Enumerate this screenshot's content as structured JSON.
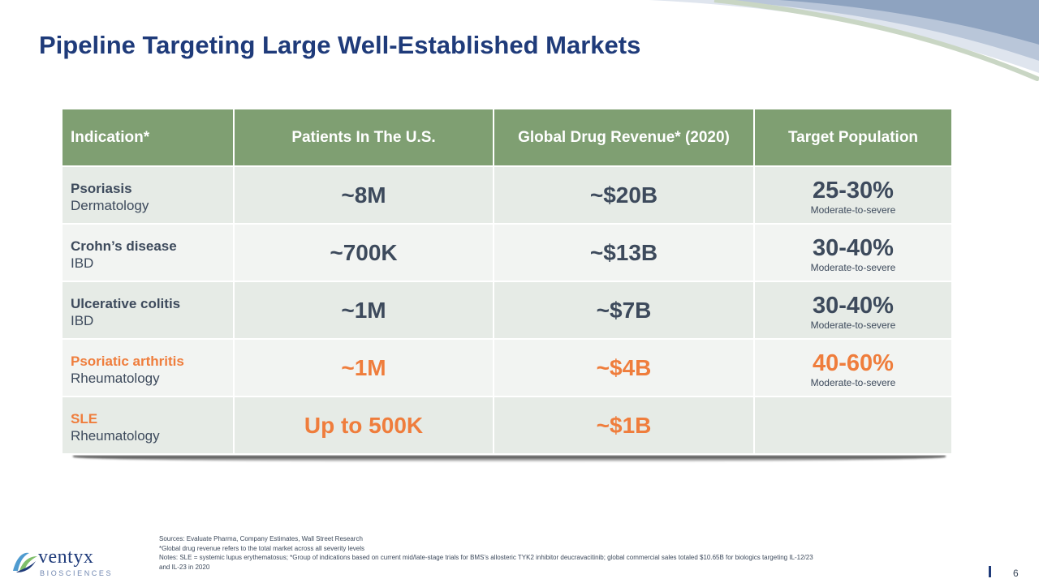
{
  "slide": {
    "title": "Pipeline Targeting Large Well-Established Markets",
    "page_number": "6"
  },
  "table": {
    "headers": [
      "Indication*",
      "Patients In The U.S.",
      "Global Drug Revenue* (2020)",
      "Target Population"
    ],
    "rows": [
      {
        "indication": "Psoriasis",
        "area": "Dermatology",
        "patients": "~8M",
        "revenue": "~$20B",
        "target": "25-30%",
        "target_note": "Moderate-to-severe"
      },
      {
        "indication": "Crohn’s disease",
        "area": "IBD",
        "patients": "~700K",
        "revenue": "~$13B",
        "target": "30-40%",
        "target_note": "Moderate-to-severe"
      },
      {
        "indication": "Ulcerative colitis",
        "area": "IBD",
        "patients": "~1M",
        "revenue": "~$7B",
        "target": "30-40%",
        "target_note": "Moderate-to-severe"
      },
      {
        "indication": "Psoriatic arthritis",
        "area": "Rheumatology",
        "patients": "~1M",
        "revenue": "~$4B",
        "target": "40-60%",
        "target_note": "Moderate-to-severe"
      },
      {
        "indication": "SLE",
        "area": "Rheumatology",
        "patients": "Up to 500K",
        "revenue": "~$1B",
        "target": "",
        "target_note": ""
      }
    ]
  },
  "colors": {
    "title": "#1f3b7a",
    "header_bg": "#7f9f72",
    "highlight": "#ef7d3c",
    "text": "#3d4a5c"
  },
  "notes": {
    "line1": "Sources: Evaluate Pharma, Company Estimates, Wall Street Research",
    "line2": "*Global drug revenue refers to the total market across all severity levels",
    "line3": "Notes: SLE = systemic lupus erythematosus;  *Group of indications based on current mid/late-stage trials for BMS’s allosteric TYK2 inhibitor deucravacitinib; global commercial sales totaled $10.65B for biologics targeting IL-12/23",
    "line4": "and IL-23 in 2020"
  },
  "logo": {
    "name": "ventyx",
    "sub": "BIOSCIENCES",
    "icon": "ventyx-logo-mark-icon"
  }
}
